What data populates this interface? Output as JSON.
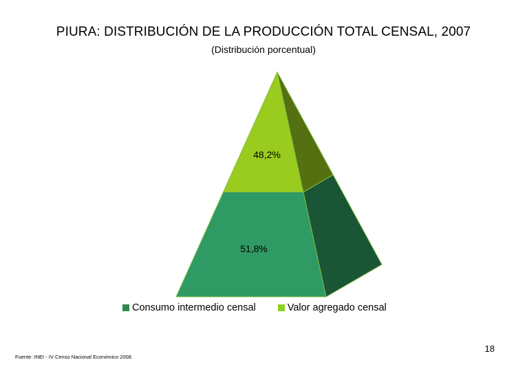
{
  "chart_data": {
    "type": "pie",
    "title": "PIURA: DISTRIBUCIÓN DE LA PRODUCCIÓN TOTAL CENSAL, 2007",
    "subtitle": "(Distribución porcentual)",
    "categories": [
      "Consumo intermedio censal",
      "Valor agregado censal"
    ],
    "values": [
      51.8,
      48.2
    ],
    "data_labels": [
      "51,8%",
      "48,2%"
    ],
    "colors": [
      "#2f9a63",
      "#99cc1f"
    ],
    "shape": "3d-pyramid",
    "legend_position": "bottom"
  },
  "legend": [
    {
      "label": "Consumo intermedio censal",
      "color": "#2f8a4f"
    },
    {
      "label": "Valor agregado censal",
      "color": "#8fd11e"
    }
  ],
  "footer": {
    "page_number": "18",
    "source": "Fuente: INEI - IV Censo Nacional Económico 2008."
  }
}
